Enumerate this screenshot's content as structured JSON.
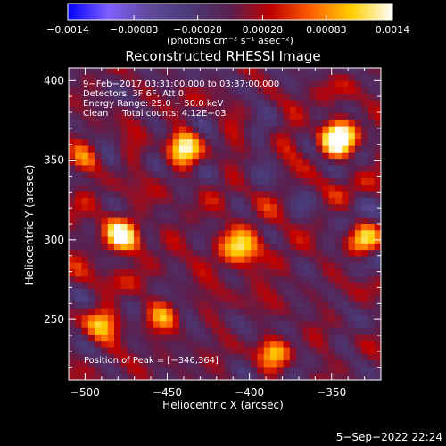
{
  "chart_data": {
    "type": "heatmap",
    "title": "Reconstructed RHESSI Image",
    "xlabel": "Heliocentric X (arcsec)",
    "ylabel": "Heliocentric Y (arcsec)",
    "xlim": [
      -510,
      -320
    ],
    "ylim": [
      212,
      408
    ],
    "x_ticks": [
      -500,
      -450,
      -400,
      -350
    ],
    "y_ticks": [
      250,
      300,
      350,
      400
    ],
    "x_tick_labels": [
      "−500",
      "−450",
      "−400",
      "−350"
    ],
    "y_tick_labels": [
      "250",
      "300",
      "350",
      "400"
    ],
    "colorbar": {
      "range": [
        -0.0014,
        0.0014
      ],
      "tick_values": [
        -0.0014,
        -0.00083,
        -0.00028,
        0.00028,
        0.00083,
        0.0014
      ],
      "tick_labels": [
        "−0.0014",
        "−0.00083",
        "−0.00028",
        "0.00028",
        "0.00083",
        "0.0014"
      ],
      "units_label": "(photons cm⁻² s⁻¹ asec⁻²)"
    },
    "annotations": [
      "9−Feb−2017 03:31:00.000 to 03:37:00.000",
      "Detectors: 3F 6F, Att 0",
      "Energy Range: 25.0 − 50.0 keV",
      "Clean     Total counts: 4.12E+03"
    ],
    "peak_label": "Position of Peak = [−346,364]",
    "peak": [
      -346,
      364
    ],
    "sources": [
      {
        "x": -346,
        "y": 364,
        "amplitude": 0.0014,
        "sigma": 10
      },
      {
        "x": -440,
        "y": 358,
        "amplitude": 0.0011,
        "sigma": 9
      },
      {
        "x": -478,
        "y": 302,
        "amplitude": 0.0012,
        "sigma": 10
      },
      {
        "x": -405,
        "y": 295,
        "amplitude": 0.0009,
        "sigma": 12
      },
      {
        "x": -490,
        "y": 248,
        "amplitude": 0.0009,
        "sigma": 9
      },
      {
        "x": -452,
        "y": 252,
        "amplitude": 0.0007,
        "sigma": 8
      },
      {
        "x": -385,
        "y": 228,
        "amplitude": 0.0009,
        "sigma": 8
      },
      {
        "x": -330,
        "y": 300,
        "amplitude": 0.0008,
        "sigma": 8
      },
      {
        "x": -500,
        "y": 350,
        "amplitude": 0.0006,
        "sigma": 8
      }
    ],
    "colors": {
      "stops": [
        "#0000ff",
        "#8060ff",
        "#5f4a9a",
        "#4a3a78",
        "#5a2050",
        "#c00000",
        "#ff6000",
        "#ffd000",
        "#ffffff"
      ]
    },
    "legend": "colorbar-top",
    "grid": false
  },
  "footer": {
    "timestamp": "5−Sep−2022 22:24"
  }
}
